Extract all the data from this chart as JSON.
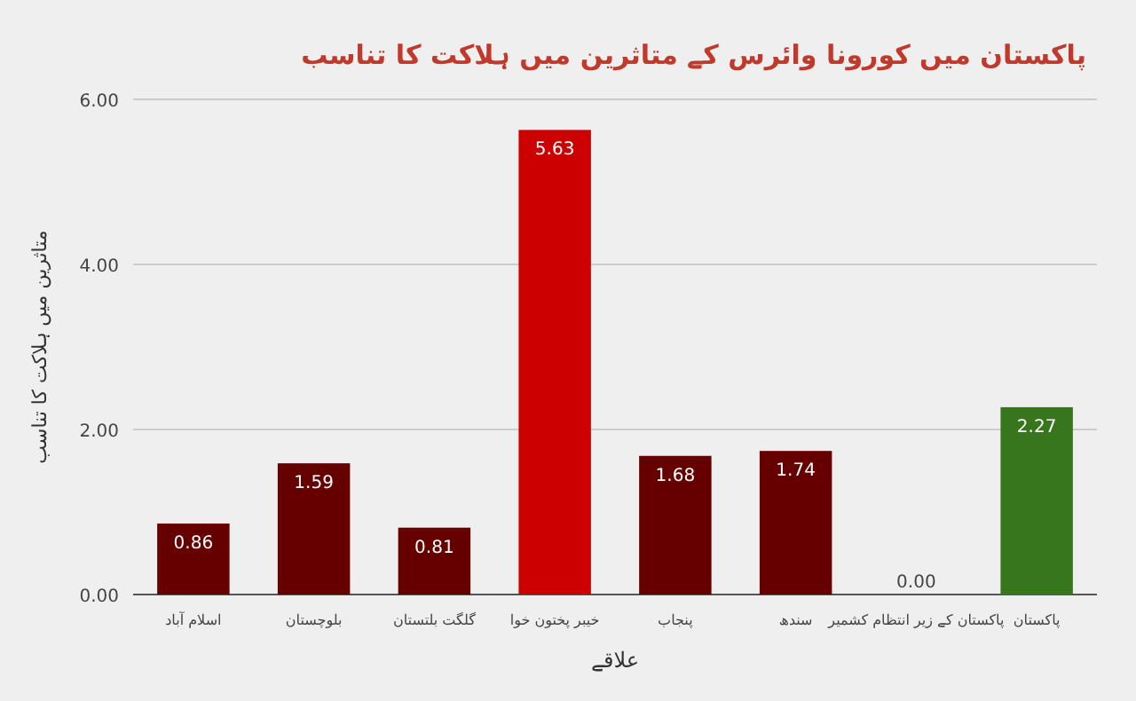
{
  "chart_data": {
    "type": "bar",
    "title": "پاکستان میں کورونا وائرس کے متاثرین میں ہلاکت کا تناسب",
    "xlabel": "علاقے",
    "ylabel": "متاثرین میں ہلاکت کا تناسب",
    "categories": [
      "اسلام آباد",
      "بلوچستان",
      "گلگت بلتستان",
      "خیبر پختون خوا",
      "پنجاب",
      "سندھ",
      "پاکستان کے زیر انتظام کشمیر",
      "پاکستان"
    ],
    "values": [
      0.86,
      1.59,
      0.81,
      5.63,
      1.68,
      1.74,
      0.0,
      2.27
    ],
    "value_labels": [
      "0.86",
      "1.59",
      "0.81",
      "5.63",
      "1.68",
      "1.74",
      "0.00",
      "2.27"
    ],
    "colors": [
      "#660000",
      "#660000",
      "#660000",
      "#cc0000",
      "#660000",
      "#660000",
      "#660000",
      "#38761d"
    ],
    "ylim": [
      0,
      6
    ],
    "yticks": [
      {
        "value": 0,
        "label": "0.00"
      },
      {
        "value": 2,
        "label": "2.00"
      },
      {
        "value": 4,
        "label": "4.00"
      },
      {
        "value": 6,
        "label": "6.00"
      }
    ],
    "grid": "y"
  }
}
